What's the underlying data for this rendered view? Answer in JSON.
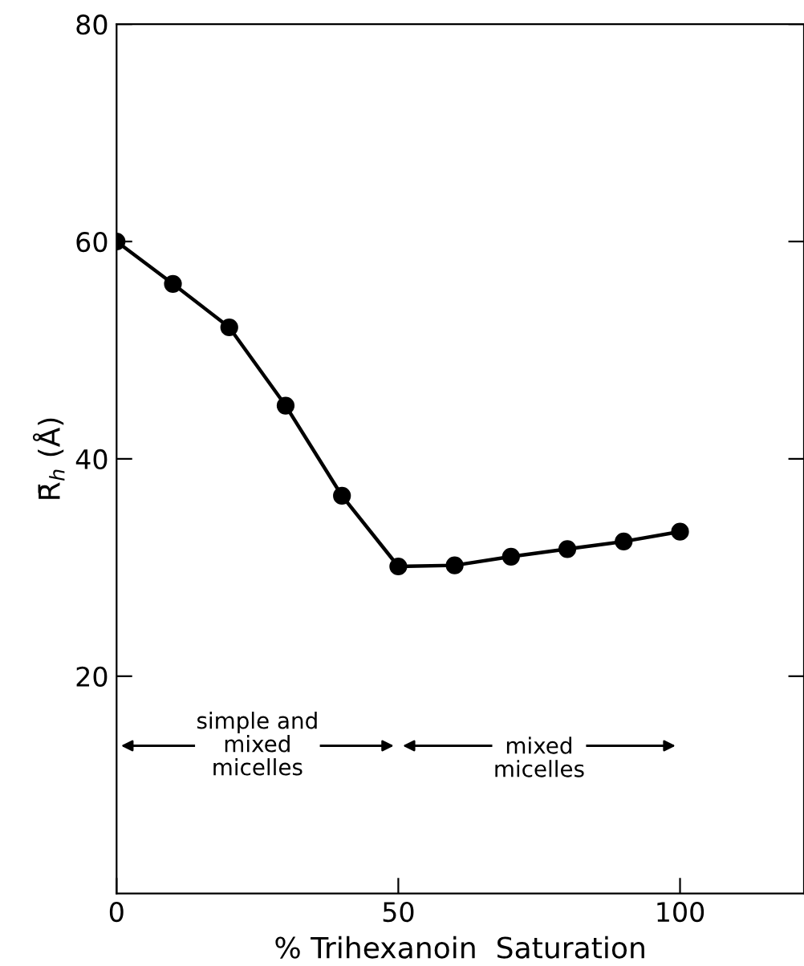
{
  "chart_data": {
    "type": "line",
    "xlabel": "% Trihexanoin  Saturation",
    "ylabel": "R̄$_{h}$ (Å)",
    "x": [
      0,
      10,
      20,
      30,
      40,
      50,
      60,
      70,
      80,
      90,
      100
    ],
    "series": [
      {
        "color": "#000000",
        "values": [
          60,
          56.1,
          52.1,
          44.9,
          36.6,
          30.1,
          30.2,
          31.0,
          31.7,
          32.4,
          33.3
        ]
      }
    ],
    "xlim": [
      0,
      122
    ],
    "ylim": [
      0,
      80
    ],
    "xticks": [
      0,
      50,
      100
    ],
    "yticks": [
      20,
      40,
      60,
      80
    ],
    "marker": "circle",
    "line_style": "solid",
    "grid": false,
    "legend": false,
    "annotations": [
      "simple and\nmixed\nmicelles",
      "mixed\nmicelles"
    ]
  }
}
